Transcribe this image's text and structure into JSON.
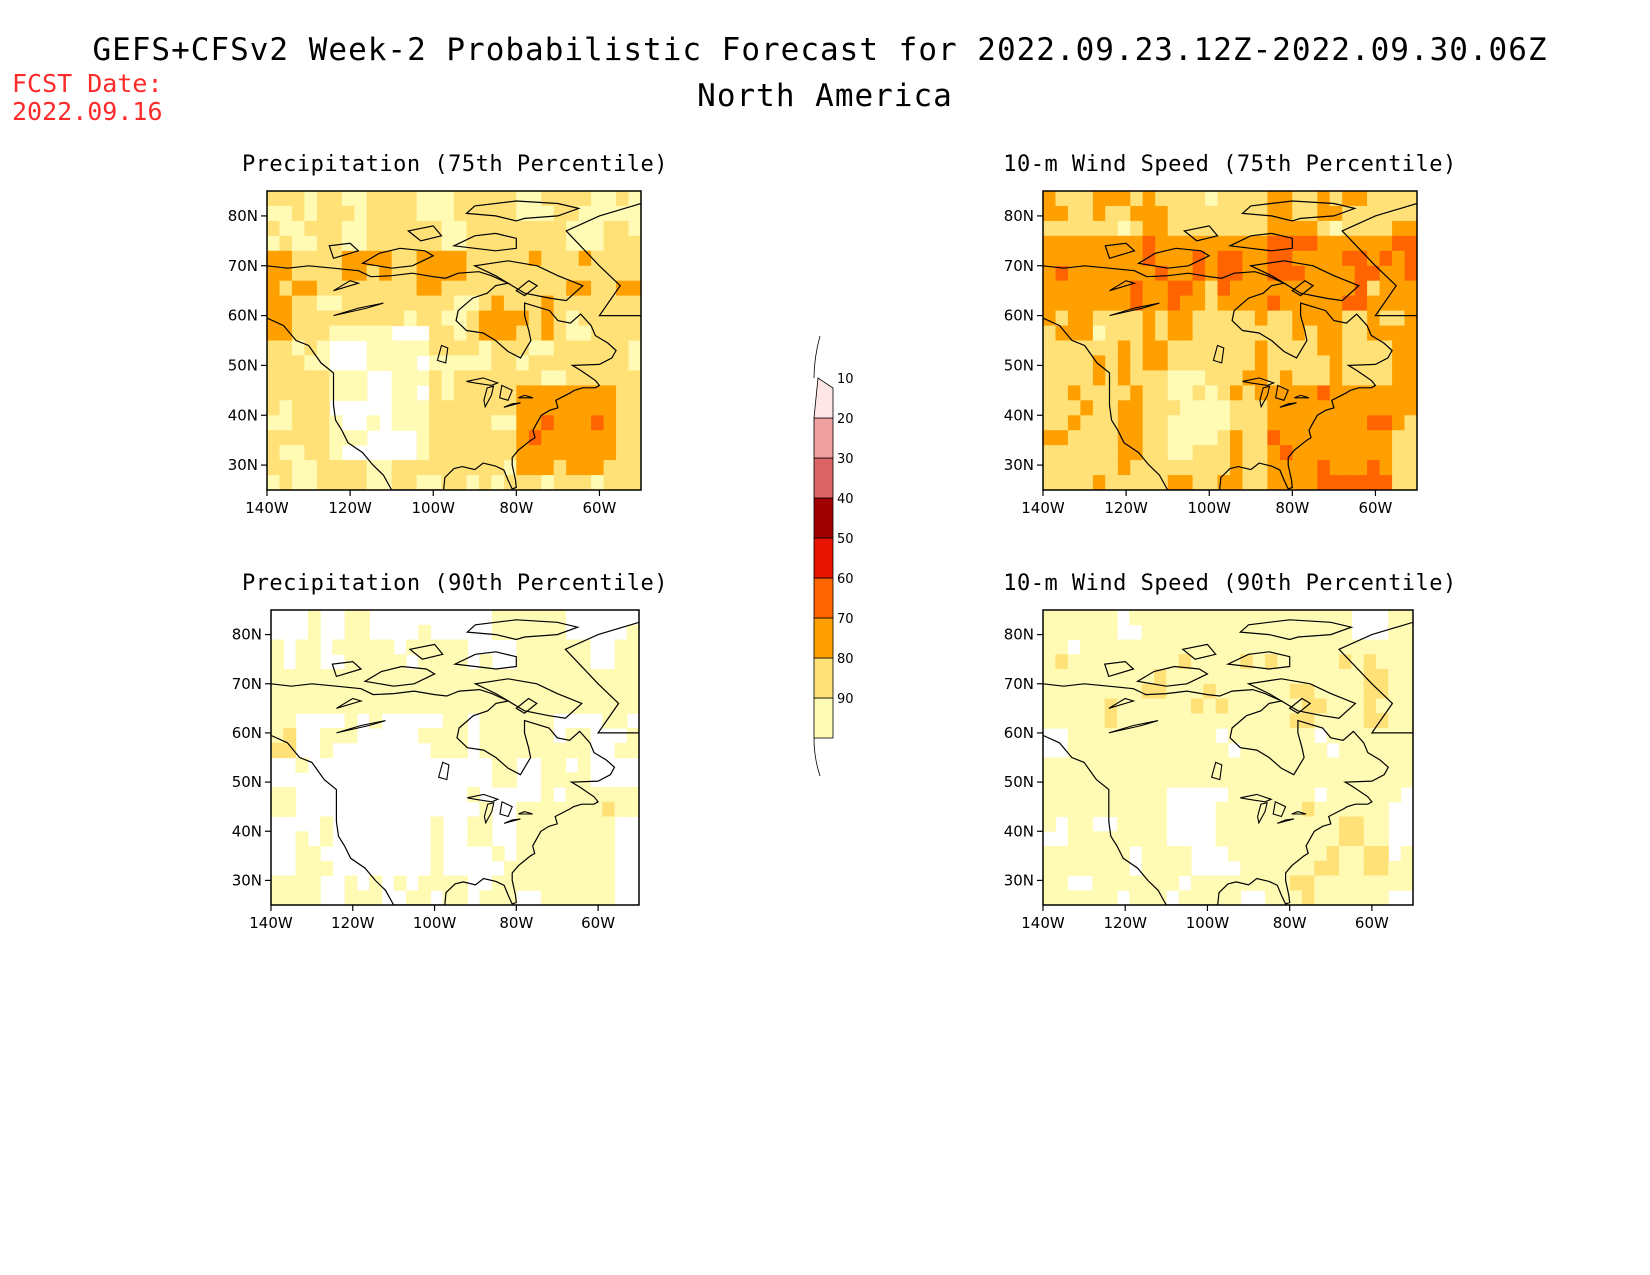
{
  "header": {
    "title_line1": "GEFS+CFSv2 Week-2 Probabilistic Forecast for 2022.09.23.12Z-2022.09.30.06Z",
    "title_line2": "North America",
    "fcst_label": "FCST Date:",
    "fcst_date": "2022.09.16"
  },
  "axes": {
    "x_ticks": [
      "140W",
      "120W",
      "100W",
      "80W",
      "60W"
    ],
    "y_ticks": [
      "80N",
      "70N",
      "60N",
      "50N",
      "40N",
      "30N"
    ]
  },
  "panels": [
    {
      "title": "Precipitation (75th Percentile)",
      "variable": "precipitation",
      "percentile": 75
    },
    {
      "title": "10-m Wind Speed (75th Percentile)",
      "variable": "wind_speed",
      "percentile": 75
    },
    {
      "title": "Precipitation (90th Percentile)",
      "variable": "precipitation",
      "percentile": 90
    },
    {
      "title": "10-m Wind Speed (90th Percentile)",
      "variable": "wind_speed",
      "percentile": 90
    }
  ],
  "colorbar": {
    "levels": [
      "10",
      "20",
      "30",
      "40",
      "50",
      "60",
      "70",
      "80",
      "90"
    ],
    "colors": [
      "#fffab4",
      "#ffe178",
      "#ffa000",
      "#ff6400",
      "#e61400",
      "#a00000",
      "#dc6464",
      "#f0a0a0",
      "#ffe6e6"
    ]
  }
}
